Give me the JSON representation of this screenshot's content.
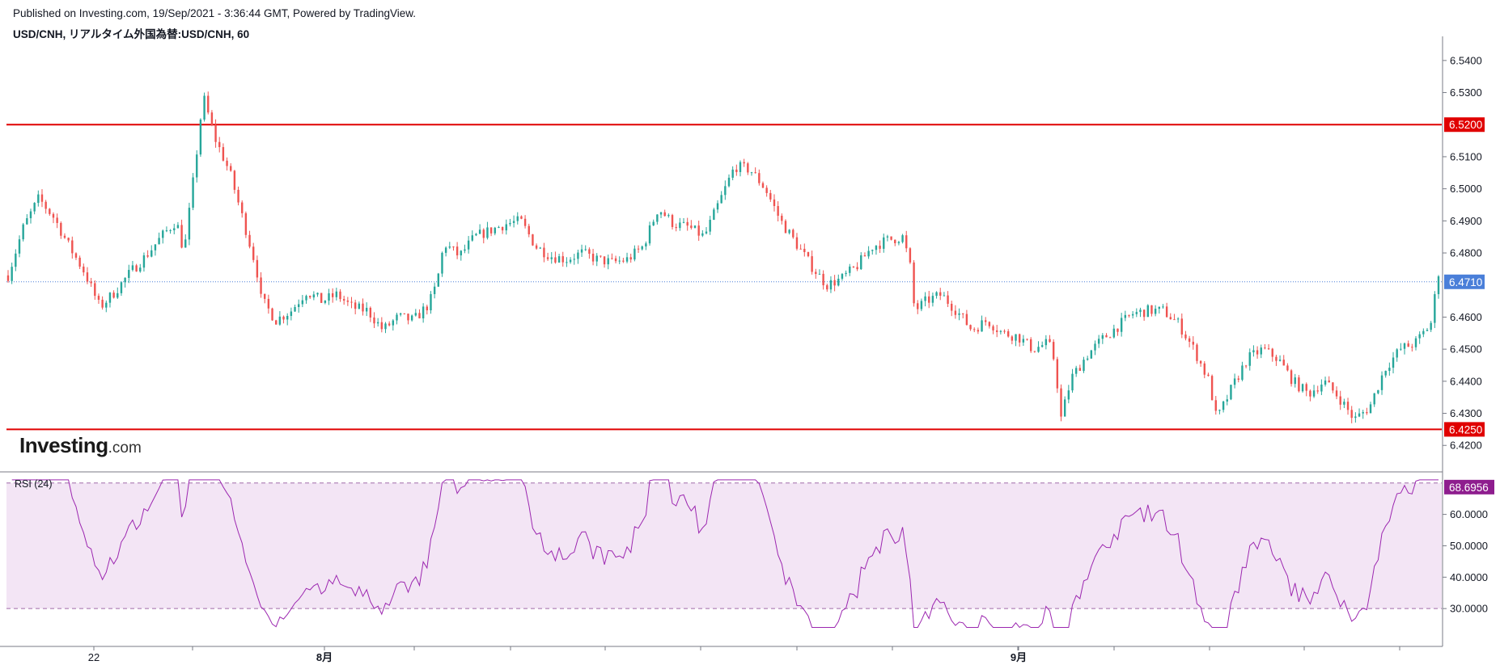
{
  "header": {
    "published": "Published on Investing.com, 19/Sep/2021 - 3:36:44 GMT, Powered by TradingView.",
    "symbol": "USD/CNH, リアルタイム外国為替:USD/CNH, 60"
  },
  "logo": {
    "main": "Investing",
    "suffix": ".com"
  },
  "colors": {
    "up": "#26a69a",
    "down": "#ef5350",
    "level": "#e00000",
    "current": "#4a7fd9",
    "rsi": "#9c27b0",
    "rsi_fill": "#f3e5f5",
    "axis": "#787b86"
  },
  "chart_data": [
    {
      "type": "candlestick",
      "title": "USD/CNH, リアルタイム外国為替:USD/CNH, 60",
      "ylim": [
        6.412,
        6.545
      ],
      "y_ticks": [
        "6.5400",
        "6.5300",
        "6.5200",
        "6.5100",
        "6.5000",
        "6.4900",
        "6.4800",
        "6.4710",
        "6.4600",
        "6.4500",
        "6.4400",
        "6.4300",
        "6.4250",
        "6.4200"
      ],
      "y_tick_values": [
        6.54,
        6.53,
        6.52,
        6.51,
        6.5,
        6.49,
        6.48,
        6.471,
        6.46,
        6.45,
        6.44,
        6.43,
        6.425,
        6.42
      ],
      "x_ticks": [
        "22",
        "8月",
        "9月"
      ],
      "horizontal_levels": [
        {
          "value": 6.52,
          "label": "6.5200"
        },
        {
          "value": 6.425,
          "label": "6.4250"
        }
      ],
      "current_price": {
        "value": 6.471,
        "label": "6.4710"
      },
      "close_path": [
        [
          0,
          6.473
        ],
        [
          2,
          6.488
        ],
        [
          4,
          6.497
        ],
        [
          6,
          6.491
        ],
        [
          8,
          6.482
        ],
        [
          10,
          6.474
        ],
        [
          12,
          6.463
        ],
        [
          14,
          6.468
        ],
        [
          16,
          6.474
        ],
        [
          18,
          6.479
        ],
        [
          20,
          6.485
        ],
        [
          22,
          6.49
        ],
        [
          23,
          6.48
        ],
        [
          24.5,
          6.508
        ],
        [
          25.5,
          6.529
        ],
        [
          27,
          6.516
        ],
        [
          29,
          6.505
        ],
        [
          31,
          6.488
        ],
        [
          32.5,
          6.475
        ],
        [
          33,
          6.466
        ],
        [
          35,
          6.459
        ],
        [
          37,
          6.462
        ],
        [
          39,
          6.468
        ],
        [
          41,
          6.465
        ],
        [
          43,
          6.467
        ],
        [
          45,
          6.463
        ],
        [
          47,
          6.462
        ],
        [
          49,
          6.456
        ],
        [
          51,
          6.46
        ],
        [
          53,
          6.459
        ],
        [
          55,
          6.464
        ],
        [
          56,
          6.47
        ],
        [
          57,
          6.483
        ],
        [
          59,
          6.479
        ],
        [
          61,
          6.485
        ],
        [
          63,
          6.487
        ],
        [
          65,
          6.489
        ],
        [
          67,
          6.49
        ],
        [
          69,
          6.482
        ],
        [
          71,
          6.479
        ],
        [
          73,
          6.478
        ],
        [
          75,
          6.48
        ],
        [
          77,
          6.478
        ],
        [
          79,
          6.477
        ],
        [
          81,
          6.478
        ],
        [
          83,
          6.482
        ],
        [
          85,
          6.494
        ],
        [
          87,
          6.489
        ],
        [
          89,
          6.488
        ],
        [
          91,
          6.485
        ],
        [
          93,
          6.496
        ],
        [
          95,
          6.507
        ],
        [
          97,
          6.506
        ],
        [
          99,
          6.5
        ],
        [
          101,
          6.49
        ],
        [
          103,
          6.483
        ],
        [
          105,
          6.476
        ],
        [
          107,
          6.47
        ],
        [
          109,
          6.472
        ],
        [
          111,
          6.476
        ],
        [
          113,
          6.482
        ],
        [
          115,
          6.484
        ],
        [
          117,
          6.485
        ],
        [
          118,
          6.475
        ],
        [
          118.5,
          6.462
        ],
        [
          120,
          6.465
        ],
        [
          122,
          6.467
        ],
        [
          124,
          6.462
        ],
        [
          126,
          6.456
        ],
        [
          128,
          6.459
        ],
        [
          130,
          6.455
        ],
        [
          132,
          6.454
        ],
        [
          134,
          6.45
        ],
        [
          136,
          6.452
        ],
        [
          137,
          6.445
        ],
        [
          137.5,
          6.427
        ],
        [
          139,
          6.441
        ],
        [
          141,
          6.448
        ],
        [
          143,
          6.453
        ],
        [
          145,
          6.457
        ],
        [
          147,
          6.461
        ],
        [
          149,
          6.462
        ],
        [
          151,
          6.462
        ],
        [
          153,
          6.458
        ],
        [
          155,
          6.45
        ],
        [
          157,
          6.44
        ],
        [
          158,
          6.428
        ],
        [
          160,
          6.438
        ],
        [
          162,
          6.447
        ],
        [
          164,
          6.45
        ],
        [
          166,
          6.447
        ],
        [
          168,
          6.44
        ],
        [
          170,
          6.436
        ],
        [
          172,
          6.44
        ],
        [
          174,
          6.435
        ],
        [
          176,
          6.428
        ],
        [
          178,
          6.432
        ],
        [
          180,
          6.444
        ],
        [
          182,
          6.45
        ],
        [
          184,
          6.452
        ],
        [
          186,
          6.458
        ],
        [
          187,
          6.474
        ]
      ],
      "candle_count": 380
    },
    {
      "type": "line",
      "title": "RSI (24)",
      "ylim": [
        20,
        72
      ],
      "y_ticks": [
        "60.0000",
        "50.0000",
        "40.0000",
        "30.0000"
      ],
      "y_tick_values": [
        60,
        50,
        40,
        30
      ],
      "bands": [
        30,
        70
      ],
      "current_value": {
        "value": 68.6956,
        "label": "68.6956"
      }
    }
  ]
}
